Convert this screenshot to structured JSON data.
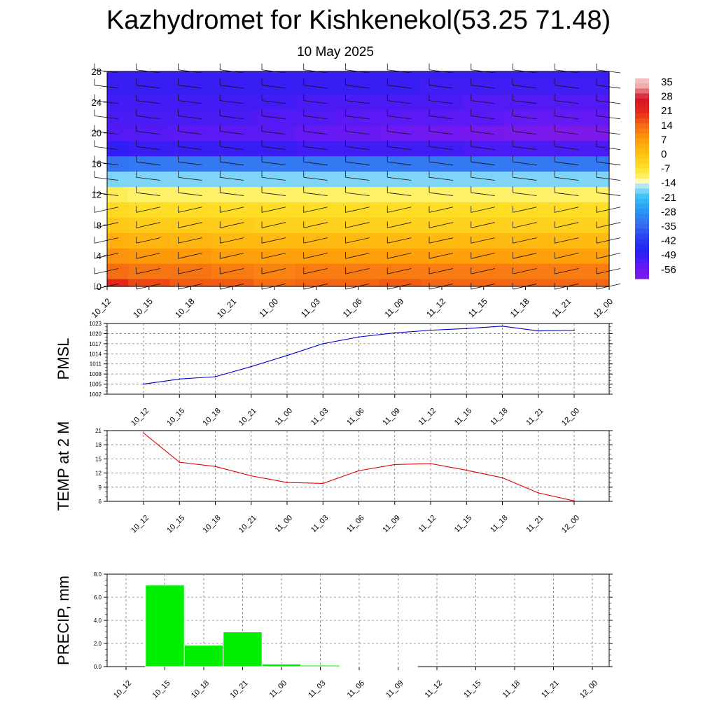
{
  "title": "Kazhydromet for Kishkenekol(53.25 71.48)",
  "subtitle": "10 May 2025",
  "charts": {
    "colorbar_labels": [
      "35",
      "28",
      "21",
      "14",
      "7",
      "0",
      "-7",
      "-14",
      "-21",
      "-28",
      "-35",
      "-42",
      "-49",
      "-56"
    ],
    "chart_data": [
      {
        "type": "heatmap",
        "x_ticks": [
          "10_12",
          "10_15",
          "10_18",
          "10_21",
          "11_00",
          "11_03",
          "11_06",
          "11_09",
          "11_12",
          "11_15",
          "11_18",
          "11_21",
          "12_00"
        ],
        "y_ticks": [
          "0",
          "4",
          "8",
          "12",
          "16",
          "20",
          "24",
          "28"
        ],
        "ylim": [
          0,
          28
        ],
        "colorscale_range": [
          -56,
          35
        ],
        "levels": [
          0,
          2,
          4,
          6,
          8,
          10,
          12,
          14,
          16,
          18,
          20,
          22,
          24,
          26,
          28
        ],
        "values": [
          [
            22,
            18,
            16,
            16,
            14,
            15,
            15,
            16,
            15,
            15,
            15,
            15,
            15
          ],
          [
            14,
            13,
            13,
            12,
            11,
            12,
            12,
            12,
            12,
            12,
            12,
            12,
            12
          ],
          [
            9,
            8,
            8,
            7,
            7,
            7,
            7,
            7,
            7,
            7,
            7,
            7,
            7
          ],
          [
            4,
            3,
            3,
            2,
            2,
            2,
            2,
            2,
            2,
            2,
            2,
            2,
            2
          ],
          [
            -1,
            -2,
            -2,
            -2,
            -3,
            -3,
            -3,
            -3,
            -3,
            -3,
            -3,
            -3,
            -3
          ],
          [
            -5,
            -6,
            -6,
            -6,
            -6,
            -6,
            -6,
            -6,
            -6,
            -6,
            -6,
            -6,
            -6
          ],
          [
            -10,
            -11,
            -11,
            -11,
            -11,
            -11,
            -11,
            -11,
            -11,
            -11,
            -11,
            -11,
            -11
          ],
          [
            -18,
            -18,
            -18,
            -18,
            -18,
            -18,
            -18,
            -18,
            -18,
            -18,
            -18,
            -18,
            -18
          ],
          [
            -34,
            -33,
            -33,
            -33,
            -33,
            -33,
            -33,
            -33,
            -33,
            -33,
            -33,
            -33,
            -33
          ],
          [
            -50,
            -51,
            -51,
            -51,
            -51,
            -52,
            -52,
            -52,
            -52,
            -53,
            -53,
            -53,
            -53
          ],
          [
            -54,
            -54,
            -55,
            -55,
            -55,
            -56,
            -57,
            -58,
            -59,
            -60,
            -61,
            -62,
            -62
          ],
          [
            -53,
            -53,
            -53,
            -53,
            -54,
            -54,
            -55,
            -55,
            -55,
            -55,
            -56,
            -56,
            -56
          ],
          [
            -52,
            -52,
            -52,
            -52,
            -52,
            -53,
            -53,
            -53,
            -53,
            -54,
            -54,
            -54,
            -54
          ],
          [
            -51,
            -51,
            -51,
            -51,
            -51,
            -51,
            -51,
            -51,
            -52,
            -52,
            -52,
            -52,
            -52
          ],
          [
            -51,
            -51,
            -51,
            -51,
            -51,
            -51,
            -51,
            -51,
            -51,
            -51,
            -51,
            -51,
            -51
          ]
        ]
      },
      {
        "type": "line",
        "ylabel": "PMSL",
        "x": [
          "10_12",
          "10_15",
          "10_18",
          "10_21",
          "11_00",
          "11_03",
          "11_06",
          "11_09",
          "11_12",
          "11_15",
          "11_18",
          "11_21",
          "12_00"
        ],
        "values": [
          1005,
          1006.5,
          1007.2,
          1010.2,
          1013.5,
          1017,
          1019,
          1020.2,
          1021,
          1021.5,
          1022.2,
          1020.8,
          1021
        ],
        "y_ticks": [
          "1002",
          "1005",
          "1008",
          "1011",
          "1014",
          "1017",
          "1020",
          "1023"
        ],
        "ylim": [
          1002,
          1023
        ],
        "color": "#0000cc",
        "grid": true
      },
      {
        "type": "line",
        "ylabel": "TEMP at 2 M",
        "x": [
          "10_12",
          "10_15",
          "10_18",
          "10_21",
          "11_00",
          "11_03",
          "11_06",
          "11_09",
          "11_12",
          "11_15",
          "11_18",
          "11_21",
          "12_00"
        ],
        "values": [
          20.5,
          14.3,
          13.4,
          11.4,
          10,
          9.8,
          12.5,
          13.8,
          14,
          12.6,
          11,
          7.8,
          6.1
        ],
        "y_ticks": [
          "6",
          "9",
          "12",
          "15",
          "18",
          "21"
        ],
        "ylim": [
          6,
          21
        ],
        "color": "#e00000",
        "grid": true
      },
      {
        "type": "bar",
        "ylabel": "PRECIP, mm",
        "categories": [
          "10_12",
          "10_15",
          "10_18",
          "10_21",
          "11_00",
          "11_03",
          "11_06",
          "11_09",
          "11_12",
          "11_15",
          "11_18",
          "11_21",
          "12_00"
        ],
        "values": [
          0,
          7.05,
          1.85,
          3.0,
          0.22,
          0.12,
          0.06,
          0.04,
          0,
          0,
          0,
          0,
          0
        ],
        "y_ticks": [
          "0.0",
          "2.0",
          "4.0",
          "6.0",
          "8.0"
        ],
        "ylim": [
          0,
          8
        ],
        "color": "#00ee00",
        "grid": true
      }
    ]
  }
}
